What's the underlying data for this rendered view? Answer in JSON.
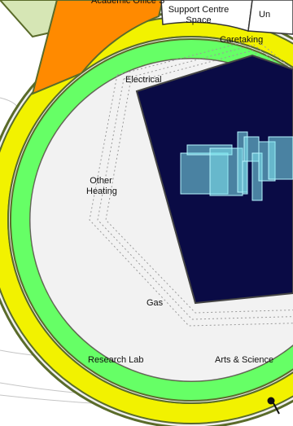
{
  "labels": {
    "academic_office": "Academic Office S",
    "support_centre": "Support Centre\nSpace",
    "unit_partial": "Un",
    "caretaking": "Caretaking",
    "electrical": "Electrical",
    "other_heating": "Other\nHeating",
    "gas": "Gas",
    "research_lab": "Research Lab",
    "arts_science": "Arts & Science"
  },
  "colors": {
    "outer_ring_yellow": "#f2f200",
    "outer_ring_orange": "#ff8a00",
    "inner_ring_green": "#66ff66",
    "core_navy": "#0a0b45",
    "building_cyan": "#7fe6ee",
    "ring_outline": "#5a6b2a"
  },
  "icons": {
    "building_model": "3d-building-model",
    "selector_dot": "selector-dot"
  }
}
